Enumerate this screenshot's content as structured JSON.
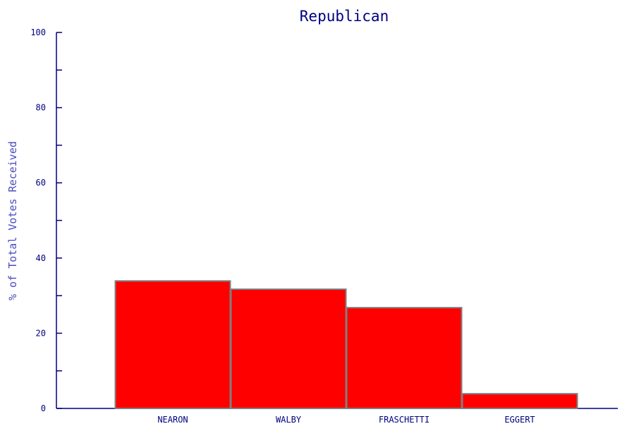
{
  "chart_data": {
    "type": "bar",
    "title": "Republican",
    "xlabel": "",
    "ylabel": "% of Total Votes Received",
    "categories": [
      "NEARON",
      "WALBY",
      "FRASCHETTI",
      "EGGERT"
    ],
    "values": [
      34.0,
      31.8,
      26.9,
      4.0
    ],
    "ylim": [
      0,
      100
    ],
    "y_major_ticks": [
      0,
      20,
      40,
      60,
      80,
      100
    ],
    "y_minor_ticks": [
      10,
      30,
      50,
      70,
      90
    ],
    "grid": false,
    "legend": "none"
  },
  "colors": {
    "bar_fill": "#ff0000",
    "bar_stroke": "#808080",
    "axis": "#000080",
    "text": "#000080",
    "ylabel": "#4a4ac0",
    "background": "#ffffff"
  }
}
